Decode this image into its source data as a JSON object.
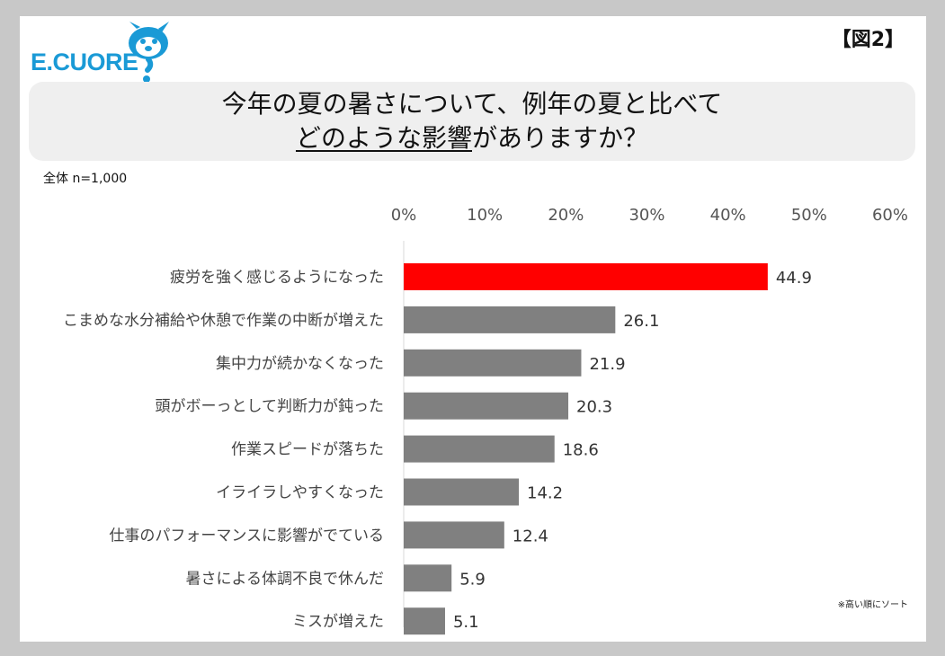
{
  "logo": {
    "text": "E.CUORE"
  },
  "figure_label": "【図2】",
  "title": {
    "line1": "今年の夏の暑さについて、例年の夏と比べて",
    "line2_underlined": "どのような影響",
    "line2_rest": "がありますか？"
  },
  "sample_note": "全体 n=1,000",
  "sort_note": "※高い順にソート",
  "colors": {
    "highlight": "#ff0000",
    "bar": "#808080"
  },
  "chart_data": {
    "type": "bar",
    "orientation": "horizontal",
    "categories": [
      "疲労を強く感じるようになった",
      "こまめな水分補給や休憩で作業の中断が増えた",
      "集中力が続かなくなった",
      "頭がボーっとして判断力が鈍った",
      "作業スピードが落ちた",
      "イライラしやすくなった",
      "仕事のパフォーマンスに影響がでている",
      "暑さによる体調不良で休んだ",
      "ミスが増えた"
    ],
    "values": [
      44.9,
      26.1,
      21.9,
      20.3,
      18.6,
      14.2,
      12.4,
      5.9,
      5.1
    ],
    "value_labels": [
      "44.9",
      "26.1",
      "21.9",
      "20.3",
      "18.6",
      "14.2",
      "12.4",
      "5.9",
      "5.1"
    ],
    "xlim": [
      0,
      60
    ],
    "x_ticks": [
      "0%",
      "10%",
      "20%",
      "30%",
      "40%",
      "50%",
      "60%"
    ],
    "tick_values": [
      0,
      10,
      20,
      30,
      40,
      50,
      60
    ],
    "x_axis_position": "top",
    "grid": false,
    "legend": "none"
  }
}
